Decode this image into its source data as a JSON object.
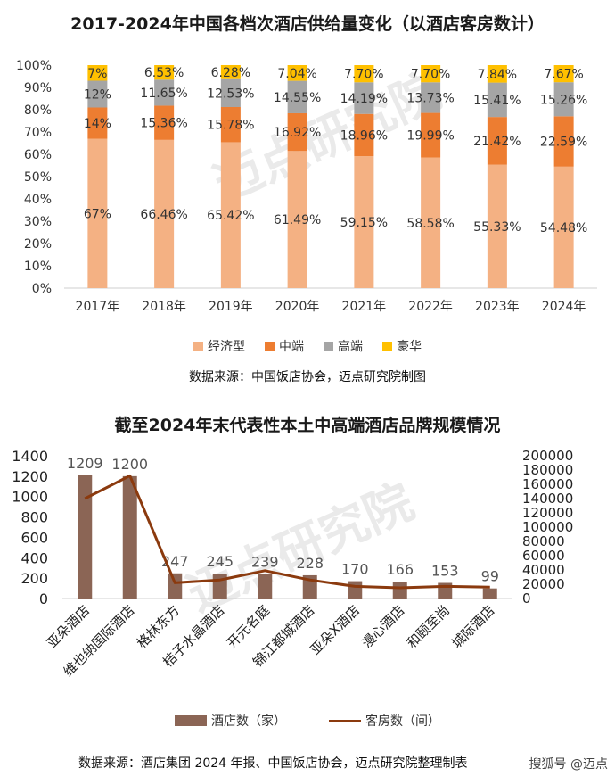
{
  "colors": {
    "economy": "#F4B183",
    "midscale": "#ED7D31",
    "upscale": "#A5A5A5",
    "luxury": "#FFC000",
    "hotels_bar": "#8B6555",
    "rooms_line": "#8B3A0E"
  },
  "chart_data": [
    {
      "type": "bar",
      "stacked": true,
      "title": "2017-2024年中国各档次酒店供给量变化（以酒店客房数计）",
      "categories": [
        "2017年",
        "2018年",
        "2019年",
        "2020年",
        "2021年",
        "2022年",
        "2023年",
        "2024年"
      ],
      "yticks": [
        "0%",
        "10%",
        "20%",
        "30%",
        "40%",
        "50%",
        "60%",
        "70%",
        "80%",
        "90%",
        "100%"
      ],
      "ylim": [
        0,
        100
      ],
      "series": [
        {
          "name": "经济型",
          "values": [
            67,
            66.46,
            65.42,
            61.49,
            59.15,
            58.58,
            55.33,
            54.48
          ],
          "labels": [
            "67%",
            "66.46%",
            "65.42%",
            "61.49%",
            "59.15%",
            "58.58%",
            "55.33%",
            "54.48%"
          ]
        },
        {
          "name": "中端",
          "values": [
            14,
            15.36,
            15.78,
            16.92,
            18.96,
            19.99,
            21.42,
            22.59
          ],
          "labels": [
            "14%",
            "15.36%",
            "15.78%",
            "16.92%",
            "18.96%",
            "19.99%",
            "21.42%",
            "22.59%"
          ]
        },
        {
          "name": "高端",
          "values": [
            12,
            11.65,
            12.53,
            14.55,
            14.19,
            13.73,
            15.41,
            15.26
          ],
          "labels": [
            "12%",
            "11.65%",
            "12.53%",
            "14.55%",
            "14.19%",
            "13.73%",
            "15.41%",
            "15.26%"
          ]
        },
        {
          "name": "豪华",
          "values": [
            7,
            6.53,
            6.28,
            7.04,
            7.7,
            7.7,
            7.84,
            7.67
          ],
          "labels": [
            "7%",
            "6.53%",
            "6.28%",
            "7.04%",
            "7.70%",
            "7.70%",
            "7.84%",
            "7.67%"
          ]
        }
      ],
      "legend": "bottom",
      "source": "数据来源：中国饭店协会，迈点研究院制图"
    },
    {
      "type": "bar+line",
      "title": "截至2024年末代表性本土中高端酒店品牌规模情况",
      "categories": [
        "亚朵酒店",
        "维也纳国际酒店",
        "格林东方",
        "桔子水晶酒店",
        "开元名庭",
        "锦江都城酒店",
        "亚朵X酒店",
        "漫心酒店",
        "和颐至尚",
        "城际酒店"
      ],
      "hotels": {
        "name": "酒店数（家）",
        "values": [
          1209,
          1200,
          247,
          245,
          239,
          228,
          170,
          166,
          153,
          99
        ],
        "labels": [
          "1209",
          "1200",
          "247",
          "245",
          "239",
          "228",
          "170",
          "166",
          "153",
          "99"
        ]
      },
      "rooms": {
        "name": "客房数（间）",
        "values": [
          140000,
          172000,
          22000,
          26000,
          39000,
          26000,
          17000,
          15000,
          17000,
          16000
        ]
      },
      "y_left_ticks": [
        "0",
        "200",
        "400",
        "600",
        "800",
        "1000",
        "1200",
        "1400"
      ],
      "y_left_lim": [
        0,
        1400
      ],
      "y_right_ticks": [
        "0",
        "20000",
        "40000",
        "60000",
        "80000",
        "100000",
        "120000",
        "140000",
        "160000",
        "180000",
        "200000"
      ],
      "y_right_lim": [
        0,
        200000
      ],
      "legend": "bottom",
      "source": "数据来源：酒店集团 2024 年报、中国饭店协会，迈点研究院整理制表"
    }
  ],
  "watermark": {
    "text": "迈点研究院"
  },
  "brand": "搜狐号 @迈点"
}
